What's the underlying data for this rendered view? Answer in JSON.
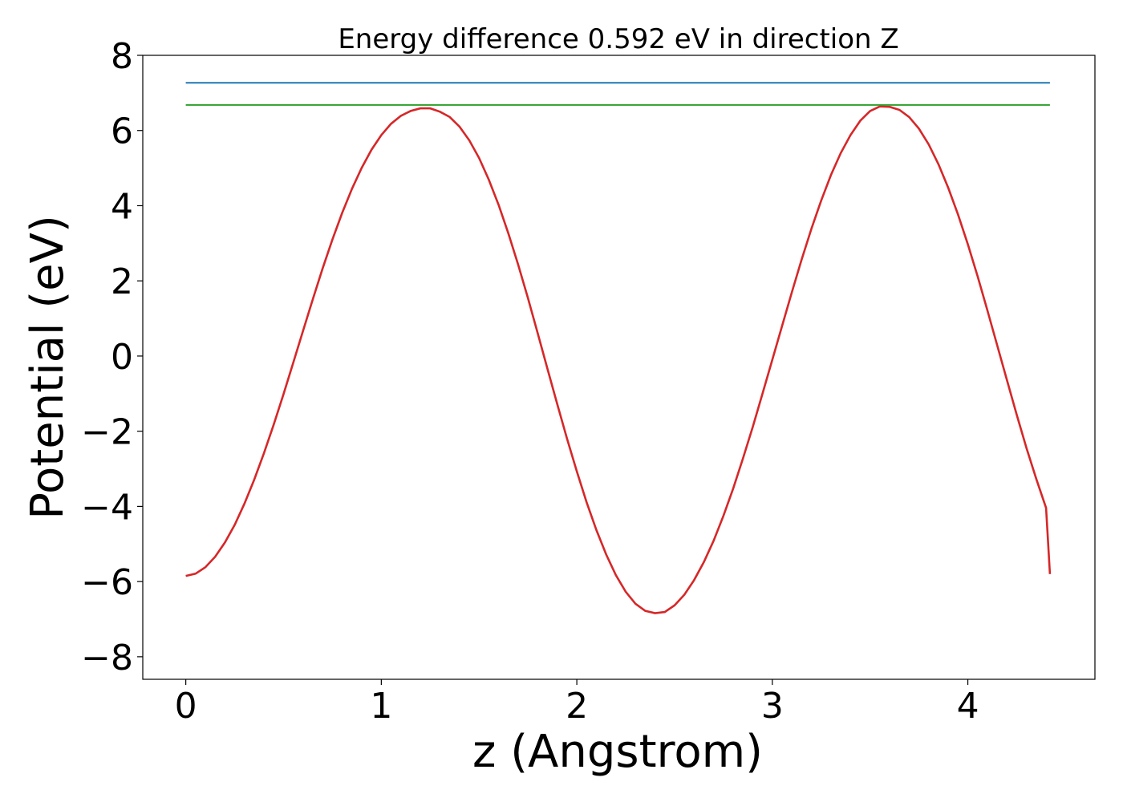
{
  "chart_data": {
    "type": "line",
    "title": "Energy difference 0.592 eV in direction Z",
    "xlabel": "z (Angstrom)",
    "ylabel": "Potential (eV)",
    "xlim": [
      -0.22,
      4.65
    ],
    "ylim": [
      -8.6,
      8.0
    ],
    "xticks": [
      0,
      1,
      2,
      3,
      4
    ],
    "xtick_labels": [
      "0",
      "1",
      "2",
      "3",
      "4"
    ],
    "yticks": [
      -8,
      -6,
      -4,
      -2,
      0,
      2,
      4,
      6,
      8
    ],
    "ytick_labels": [
      "−8",
      "−6",
      "−4",
      "−2",
      "0",
      "2",
      "4",
      "6",
      "8"
    ],
    "grid": false,
    "series": [
      {
        "color": "#d62728",
        "x": [
          0,
          0.05,
          0.1,
          0.15,
          0.2,
          0.25,
          0.3,
          0.35,
          0.4,
          0.45,
          0.5,
          0.55,
          0.6,
          0.65,
          0.7,
          0.75,
          0.8,
          0.85,
          0.9,
          0.95,
          1.0,
          1.05,
          1.1,
          1.15,
          1.2,
          1.25,
          1.3,
          1.35,
          1.4,
          1.45,
          1.5,
          1.55,
          1.6,
          1.65,
          1.7,
          1.75,
          1.8,
          1.85,
          1.9,
          1.95,
          2.0,
          2.05,
          2.1,
          2.15,
          2.2,
          2.25,
          2.3,
          2.35,
          2.4,
          2.45,
          2.5,
          2.55,
          2.6,
          2.65,
          2.7,
          2.75,
          2.8,
          2.85,
          2.9,
          2.95,
          3.0,
          3.05,
          3.1,
          3.15,
          3.2,
          3.25,
          3.3,
          3.35,
          3.4,
          3.45,
          3.5,
          3.55,
          3.6,
          3.65,
          3.7,
          3.75,
          3.8,
          3.85,
          3.9,
          3.95,
          4.0,
          4.05,
          4.1,
          4.15,
          4.2,
          4.25,
          4.3,
          4.35,
          4.4,
          4.42
        ],
        "y": [
          -5.85,
          -5.79,
          -5.62,
          -5.34,
          -4.96,
          -4.49,
          -3.93,
          -3.29,
          -2.58,
          -1.82,
          -1.01,
          -0.17,
          0.68,
          1.52,
          2.33,
          3.1,
          3.81,
          4.45,
          5.01,
          5.49,
          5.88,
          6.18,
          6.39,
          6.52,
          6.59,
          6.59,
          6.5,
          6.36,
          6.1,
          5.74,
          5.27,
          4.69,
          4.02,
          3.26,
          2.43,
          1.54,
          0.61,
          -0.34,
          -1.28,
          -2.2,
          -3.07,
          -3.89,
          -4.63,
          -5.28,
          -5.83,
          -6.27,
          -6.59,
          -6.78,
          -6.84,
          -6.81,
          -6.63,
          -6.35,
          -5.96,
          -5.48,
          -4.91,
          -4.25,
          -3.52,
          -2.72,
          -1.88,
          -1.0,
          -0.1,
          0.8,
          1.7,
          2.57,
          3.39,
          4.14,
          4.82,
          5.4,
          5.88,
          6.26,
          6.52,
          6.64,
          6.63,
          6.55,
          6.36,
          6.05,
          5.63,
          5.1,
          4.47,
          3.76,
          2.97,
          2.12,
          1.22,
          0.29,
          -0.64,
          -1.56,
          -2.45,
          -3.27,
          -4.04,
          -5.8
        ]
      },
      {
        "color": "#1f77b4",
        "x": [
          0,
          4.42
        ],
        "y": [
          7.27,
          7.27
        ]
      },
      {
        "color": "#2ca02c",
        "x": [
          0,
          4.42
        ],
        "y": [
          6.68,
          6.68
        ]
      }
    ]
  }
}
